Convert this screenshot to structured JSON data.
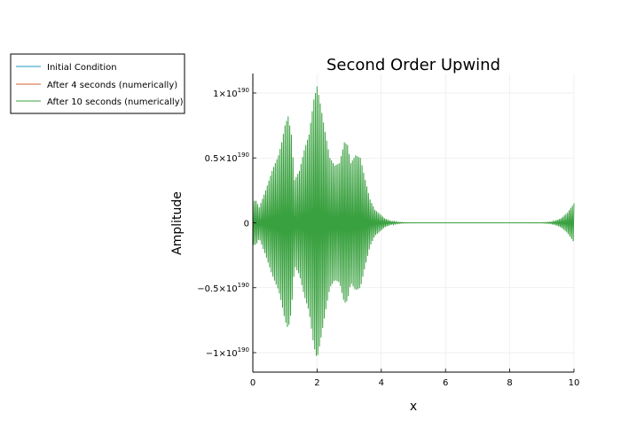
{
  "chart_data": {
    "type": "line",
    "title": "Second Order Upwind",
    "xlabel": "x",
    "ylabel": "Amplitude",
    "xlim": [
      0,
      10
    ],
    "ylim": [
      -1.15e+190,
      1.15e+190
    ],
    "xticks": [
      {
        "value": 0,
        "label": "0"
      },
      {
        "value": 2,
        "label": "2"
      },
      {
        "value": 4,
        "label": "4"
      },
      {
        "value": 6,
        "label": "6"
      },
      {
        "value": 8,
        "label": "8"
      },
      {
        "value": 10,
        "label": "10"
      }
    ],
    "yticks": [
      {
        "value": 1e+190,
        "base": "1×10",
        "exp": "190"
      },
      {
        "value": 5e+189,
        "base": "0.5×10",
        "exp": "190"
      },
      {
        "value": 0,
        "base": "0",
        "exp": ""
      },
      {
        "value": -5e+189,
        "base": "−0.5×10",
        "exp": "190"
      },
      {
        "value": -1e+190,
        "base": "−1×10",
        "exp": "190"
      }
    ],
    "grid": true,
    "legend_position": "outside-top-left",
    "series": [
      {
        "name": "Initial Condition",
        "color": "#1f9bbf",
        "x": [
          0,
          10
        ],
        "y": [
          0,
          0
        ]
      },
      {
        "name": "After 4 seconds (numerically)",
        "color": "#d1612f",
        "x": [
          0,
          10
        ],
        "y": [
          0,
          0
        ]
      },
      {
        "name": "After 10 seconds (numerically)",
        "color": "#3aa140",
        "style": "oscillating-envelope",
        "envelope": {
          "x": [
            0,
            0.1,
            0.2,
            0.4,
            0.6,
            0.8,
            0.9,
            1.0,
            1.1,
            1.2,
            1.3,
            1.45,
            1.6,
            1.75,
            1.9,
            2.0,
            2.1,
            2.25,
            2.4,
            2.55,
            2.7,
            2.85,
            2.95,
            3.05,
            3.2,
            3.35,
            3.5,
            3.65,
            3.8,
            3.95,
            4.1,
            4.3,
            4.5,
            4.7,
            4.9,
            5.1,
            5.5,
            6.0,
            7.0,
            8.0,
            8.5,
            9.0,
            9.3,
            9.6,
            9.8,
            10.0
          ],
          "y": [
            1.7e+189,
            1.7e+189,
            1.2e+189,
            2.5e+189,
            4e+189,
            5.2e+189,
            6.2e+189,
            7.5e+189,
            8.2e+189,
            6.8e+189,
            3.3e+189,
            4e+189,
            5.6e+189,
            6.8e+189,
            9.5e+189,
            1.05e+190,
            9.2e+189,
            7e+189,
            5e+189,
            4.4e+189,
            4.6e+189,
            6.2e+189,
            6e+189,
            4.6e+189,
            5.2e+189,
            5e+189,
            3.3e+189,
            1.8e+189,
            1e+189,
            7e+188,
            3.5e+188,
            1.5e+188,
            6e+187,
            2e+187,
            8e+186,
            2e+186,
            0,
            0,
            0,
            0,
            2e+186,
            1e+187,
            6e+187,
            3.5e+188,
            8e+188,
            1.5e+189
          ]
        },
        "oscillation_period": 0.05
      }
    ]
  }
}
